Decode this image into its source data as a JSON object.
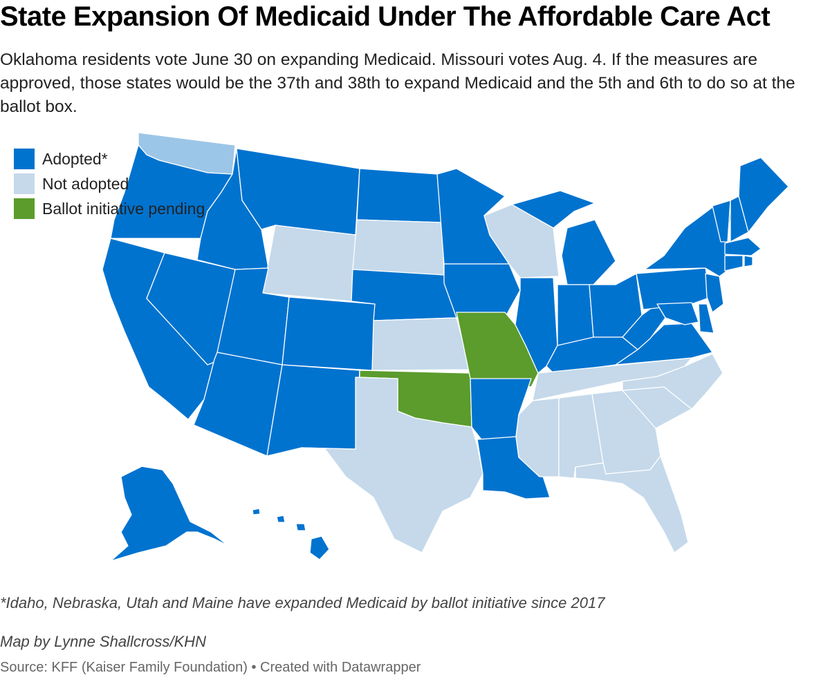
{
  "header": {
    "title": "State Expansion Of Medicaid Under The Affordable Care Act",
    "subtitle": "Oklahoma residents vote June 30 on expanding Medicaid. Missouri votes Aug. 4. If the measures are approved, those states would be the 37th and 38th to expand Medicaid and the 5th and 6th to do so at the ballot box."
  },
  "legend": [
    {
      "key": "adopted",
      "label": "Adopted*",
      "color": "#0073cf"
    },
    {
      "key": "notadopted",
      "label": "Not adopted",
      "color": "#c5d9ea"
    },
    {
      "key": "pending",
      "label": "Ballot initiative pending",
      "color": "#5b9c2d"
    }
  ],
  "colors": {
    "adopted": "#0073cf",
    "not_adopted": "#c5d9ea",
    "pending": "#5b9c2d",
    "washington_highlight": "#9cc6e7"
  },
  "map_data": {
    "states": [
      {
        "code": "WA",
        "status": "adopted"
      },
      {
        "code": "OR",
        "status": "adopted"
      },
      {
        "code": "CA",
        "status": "adopted"
      },
      {
        "code": "NV",
        "status": "adopted"
      },
      {
        "code": "ID",
        "status": "adopted"
      },
      {
        "code": "MT",
        "status": "adopted"
      },
      {
        "code": "WY",
        "status": "not_adopted"
      },
      {
        "code": "UT",
        "status": "adopted"
      },
      {
        "code": "AZ",
        "status": "adopted"
      },
      {
        "code": "CO",
        "status": "adopted"
      },
      {
        "code": "NM",
        "status": "adopted"
      },
      {
        "code": "ND",
        "status": "adopted"
      },
      {
        "code": "SD",
        "status": "not_adopted"
      },
      {
        "code": "NE",
        "status": "adopted"
      },
      {
        "code": "KS",
        "status": "not_adopted"
      },
      {
        "code": "OK",
        "status": "pending"
      },
      {
        "code": "TX",
        "status": "not_adopted"
      },
      {
        "code": "MN",
        "status": "adopted"
      },
      {
        "code": "IA",
        "status": "adopted"
      },
      {
        "code": "MO",
        "status": "pending"
      },
      {
        "code": "AR",
        "status": "adopted"
      },
      {
        "code": "LA",
        "status": "adopted"
      },
      {
        "code": "WI",
        "status": "not_adopted"
      },
      {
        "code": "IL",
        "status": "adopted"
      },
      {
        "code": "MI",
        "status": "adopted"
      },
      {
        "code": "IN",
        "status": "adopted"
      },
      {
        "code": "OH",
        "status": "adopted"
      },
      {
        "code": "KY",
        "status": "adopted"
      },
      {
        "code": "TN",
        "status": "not_adopted"
      },
      {
        "code": "MS",
        "status": "not_adopted"
      },
      {
        "code": "AL",
        "status": "not_adopted"
      },
      {
        "code": "GA",
        "status": "not_adopted"
      },
      {
        "code": "FL",
        "status": "not_adopted"
      },
      {
        "code": "SC",
        "status": "not_adopted"
      },
      {
        "code": "NC",
        "status": "not_adopted"
      },
      {
        "code": "VA",
        "status": "adopted"
      },
      {
        "code": "WV",
        "status": "adopted"
      },
      {
        "code": "PA",
        "status": "adopted"
      },
      {
        "code": "NY",
        "status": "adopted"
      },
      {
        "code": "NJ",
        "status": "adopted"
      },
      {
        "code": "DE",
        "status": "adopted"
      },
      {
        "code": "MD",
        "status": "adopted"
      },
      {
        "code": "CT",
        "status": "adopted"
      },
      {
        "code": "RI",
        "status": "adopted"
      },
      {
        "code": "MA",
        "status": "adopted"
      },
      {
        "code": "VT",
        "status": "adopted"
      },
      {
        "code": "NH",
        "status": "adopted"
      },
      {
        "code": "ME",
        "status": "adopted"
      },
      {
        "code": "AK",
        "status": "adopted"
      },
      {
        "code": "HI",
        "status": "adopted"
      }
    ]
  },
  "footer": {
    "footnote": "*Idaho, Nebraska, Utah and Maine have expanded Medicaid by ballot initiative since 2017",
    "byline": "Map by Lynne Shallcross/KHN",
    "source": "Source: KFF (Kaiser Family Foundation) • Created with Datawrapper"
  }
}
